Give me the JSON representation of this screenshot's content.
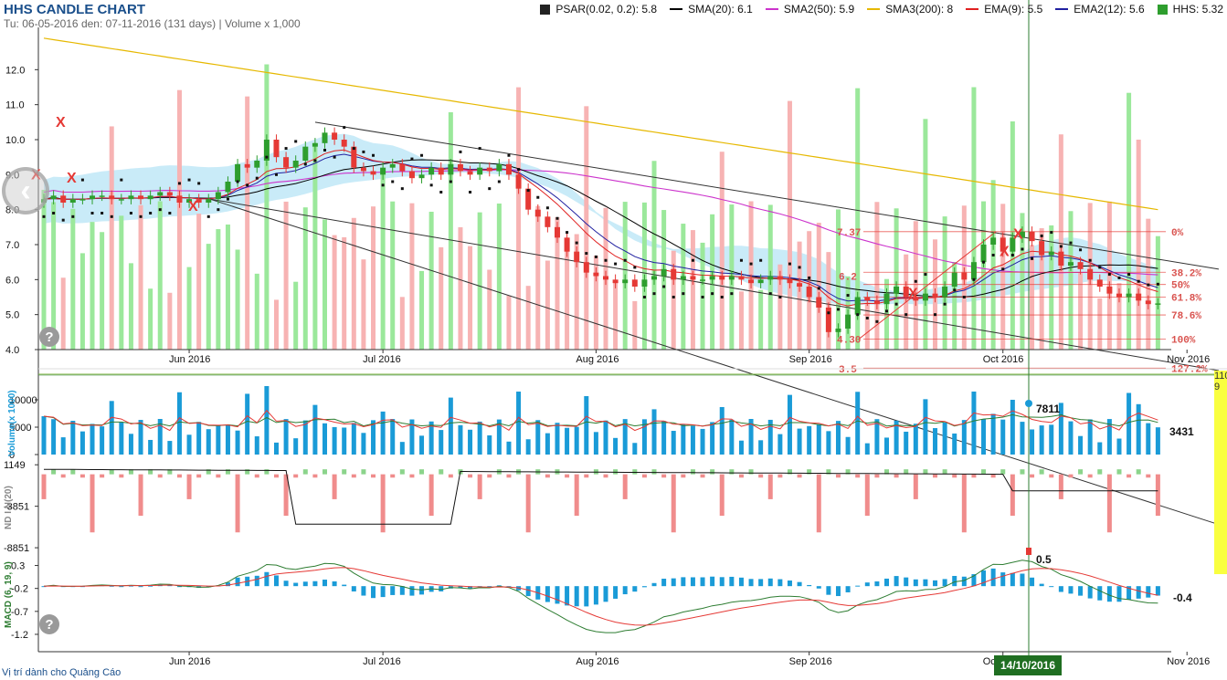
{
  "header": {
    "title": "HHS CANDLE CHART",
    "subtitle": "Tu: 06-05-2016 den: 07-11-2016 (131 days) | Volume x 1,000"
  },
  "legend": [
    {
      "label": "PSAR(0.02, 0.2): 5.8",
      "color": "#222222",
      "kind": "square"
    },
    {
      "label": "SMA(20): 6.1",
      "color": "#000000",
      "kind": "line"
    },
    {
      "label": "SMA2(50): 5.9",
      "color": "#cc33cc",
      "kind": "line"
    },
    {
      "label": "SMA3(200): 8",
      "color": "#e6b800",
      "kind": "line"
    },
    {
      "label": "EMA(9): 5.5",
      "color": "#e02020",
      "kind": "line"
    },
    {
      "label": "EMA2(12): 5.6",
      "color": "#2020a0",
      "kind": "line"
    },
    {
      "label": "HHS: 5.32",
      "color": "#2e9e2e",
      "kind": "square"
    }
  ],
  "footer": {
    "ad_text": "Vị trí dành cho Quảng Cáo"
  },
  "crosshair": {
    "date_label": "14/10/2016",
    "volume_value": "7811",
    "macd_value": "0.5"
  },
  "side_box": {
    "text_1": "110",
    "text_2": "9"
  },
  "colors": {
    "up": "#2e9e2e",
    "down": "#e53935",
    "vol_up": "#9be89b",
    "vol_down": "#f7b3b3",
    "band": "#bfe8f7",
    "volbar": "#1a9bd7"
  },
  "chart_data": [
    {
      "panel": "price",
      "type": "candlestick",
      "title": "HHS CANDLE CHART",
      "ylim": [
        4.0,
        13.0
      ],
      "yticks": [
        "4.0",
        "5.0",
        "6.0",
        "7.0",
        "8.0",
        "9.0",
        "10.0",
        "11.0",
        "12.0"
      ],
      "xticks": [
        "Jun 2016",
        "Jul 2016",
        "Aug 2016",
        "Sep 2016",
        "Oct 2016",
        "Nov 2016"
      ],
      "close_series": [
        8.3,
        8.4,
        8.2,
        8.3,
        8.3,
        8.4,
        8.4,
        8.3,
        8.3,
        8.4,
        8.3,
        8.4,
        8.5,
        8.4,
        8.2,
        8.3,
        8.2,
        8.3,
        8.5,
        8.8,
        9.3,
        9.2,
        9.4,
        10.0,
        9.5,
        9.2,
        9.4,
        9.8,
        9.9,
        10.2,
        10.0,
        9.8,
        9.2,
        9.1,
        9.0,
        9.2,
        9.3,
        9.1,
        8.9,
        9.0,
        9.2,
        9.0,
        9.3,
        9.1,
        9.0,
        9.2,
        9.1,
        9.3,
        9.0,
        8.6,
        8.0,
        7.8,
        7.5,
        7.2,
        6.8,
        6.5,
        6.2,
        6.1,
        6.0,
        5.9,
        6.0,
        5.8,
        6.0,
        6.1,
        6.3,
        6.0,
        6.1,
        6.0,
        6.0,
        6.1,
        6.0,
        6.1,
        6.0,
        5.9,
        6.0,
        6.1,
        6.0,
        5.9,
        5.8,
        5.5,
        5.2,
        4.5,
        4.6,
        5.0,
        5.5,
        5.4,
        5.3,
        5.6,
        5.8,
        5.5,
        5.4,
        5.6,
        5.5,
        5.8,
        6.2,
        6.0,
        6.5,
        7.0,
        7.2,
        6.8,
        7.2,
        7.37,
        7.1,
        6.7,
        6.8,
        6.4,
        6.5,
        6.3,
        6.0,
        5.8,
        5.6,
        5.5,
        5.6,
        5.4,
        5.3,
        5.32
      ],
      "fib_levels": [
        {
          "label": "0%",
          "value": 7.37
        },
        {
          "label": "38.2%",
          "value": 6.21
        },
        {
          "label": "50%",
          "value": 5.86
        },
        {
          "label": "61.8%",
          "value": 5.5
        },
        {
          "label": "78.6%",
          "value": 4.99
        },
        {
          "label": "100%",
          "value": 4.3
        },
        {
          "label": "127.2%",
          "value": 3.47
        }
      ],
      "annotations": [
        "7.37",
        "4.30",
        "6.2",
        "3.5"
      ]
    },
    {
      "panel": "volume",
      "type": "bar",
      "ylabel": "Volume(x 1000)",
      "yticks": [
        "0",
        "5000",
        "10000"
      ],
      "last_value": "3431",
      "crosshair_value": "7811"
    },
    {
      "panel": "nd",
      "type": "bar",
      "ylabel": "ND I N(20)",
      "yticks": [
        "1149",
        "-3851",
        "-8851"
      ]
    },
    {
      "panel": "macd",
      "type": "line",
      "ylabel": "MACD (6, 19, 9)",
      "yticks": [
        "0.3",
        "-0.2",
        "-0.7",
        "-1.2"
      ],
      "last_value": "-0.4",
      "crosshair_value": "0.5"
    }
  ]
}
